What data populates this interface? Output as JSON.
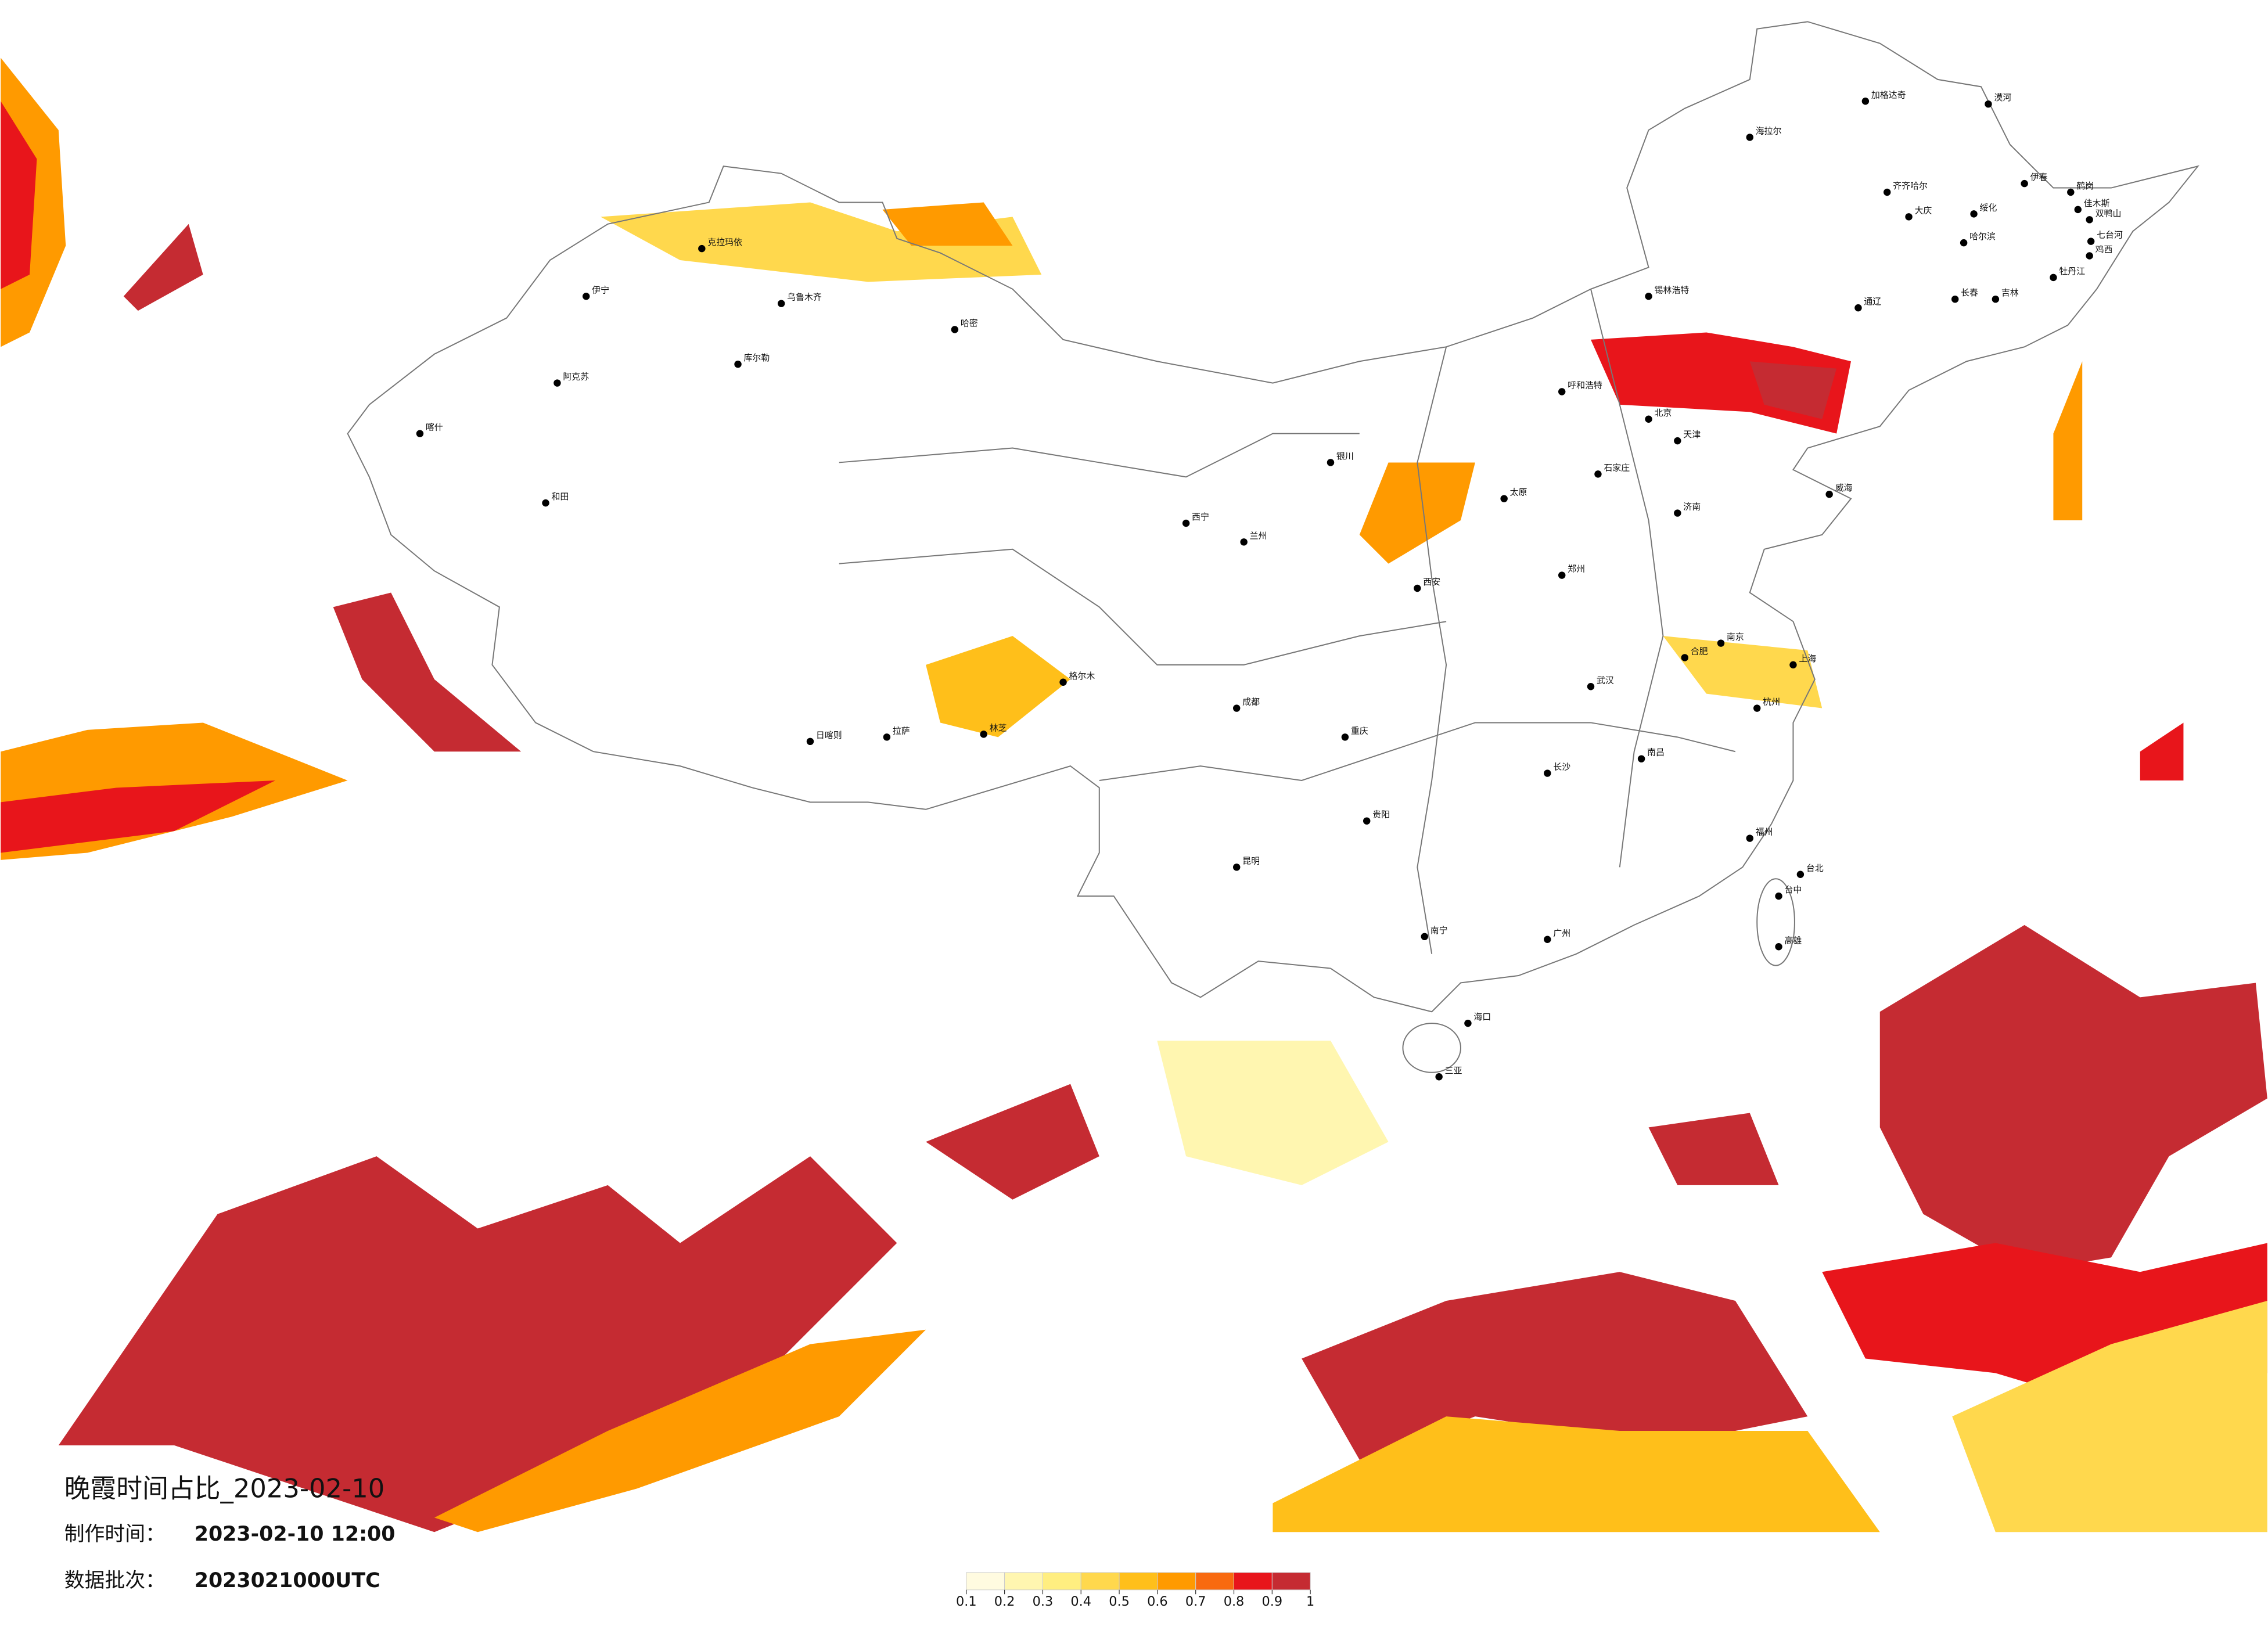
{
  "title": "晚霞时间占比_2023-02-10",
  "production_time": {
    "label": "制作时间：",
    "value": "2023-02-10 12:00"
  },
  "data_batch": {
    "label": "数据批次：",
    "value": "2023021000UTC"
  },
  "legend": {
    "ticks": [
      0.1,
      0.2,
      0.3,
      0.4,
      0.5,
      0.6,
      0.7,
      0.8,
      0.9,
      1
    ],
    "colors": [
      "#fffbe0",
      "#fff6b0",
      "#ffee80",
      "#ffd84d",
      "#ffbf1a",
      "#ff9a00",
      "#f86a10",
      "#e8151b",
      "#c52b32"
    ]
  },
  "cities": [
    "漠河",
    "加格达奇",
    "海拉尔",
    "齐齐哈尔",
    "伊春",
    "鹤岗",
    "佳木斯",
    "双鸭山",
    "七台河",
    "鸡西",
    "牡丹江",
    "绥化",
    "大庆",
    "哈尔滨",
    "长春",
    "吉林",
    "通辽",
    "锡林浩特",
    "呼和浩特",
    "北京",
    "天津",
    "石家庄",
    "太原",
    "济南",
    "郑州",
    "西安",
    "兰州",
    "西宁",
    "银川",
    "乌鲁木齐",
    "克拉玛依",
    "伊宁",
    "阿克苏",
    "和田",
    "喀什",
    "库尔勒",
    "哈密",
    "格尔木",
    "拉萨",
    "日喀则",
    "林芝",
    "成都",
    "重庆",
    "贵阳",
    "昆明",
    "南宁",
    "广州",
    "海口",
    "三亚",
    "长沙",
    "武汉",
    "南昌",
    "福州",
    "杭州",
    "上海",
    "南京",
    "合肥",
    "台北",
    "台中",
    "高雄",
    "威海"
  ]
}
